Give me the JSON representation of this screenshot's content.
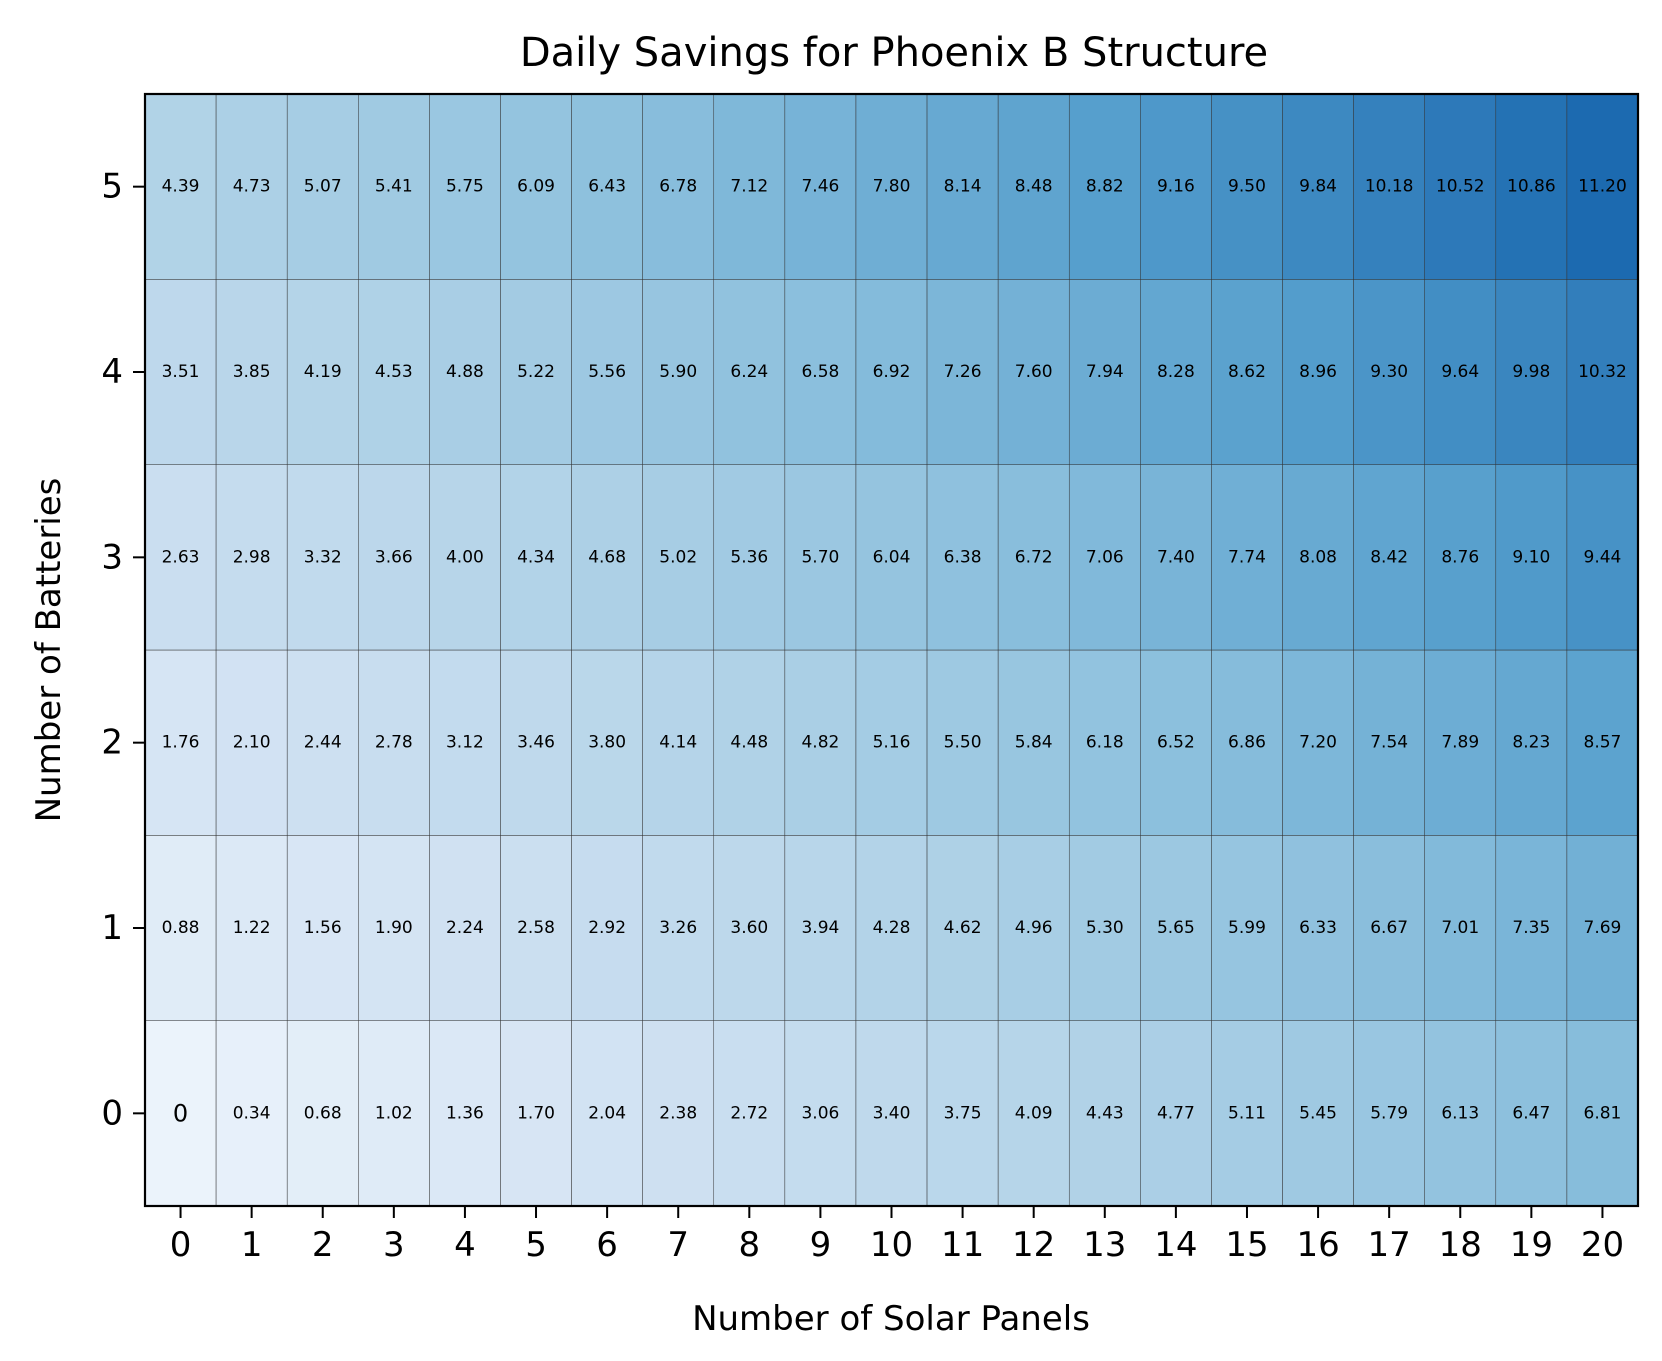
{
  "chart_data": {
    "type": "heatmap",
    "title": "Daily Savings for Phoenix B Structure",
    "xlabel": "Number of Solar Panels",
    "ylabel": "Number of Batteries",
    "x": [
      0,
      1,
      2,
      3,
      4,
      5,
      6,
      7,
      8,
      9,
      10,
      11,
      12,
      13,
      14,
      15,
      16,
      17,
      18,
      19,
      20
    ],
    "y": [
      0,
      1,
      2,
      3,
      4,
      5
    ],
    "values": [
      [
        "0",
        "0.34",
        "0.68",
        "1.02",
        "1.36",
        "1.70",
        "2.04",
        "2.38",
        "2.72",
        "3.06",
        "3.40",
        "3.75",
        "4.09",
        "4.43",
        "4.77",
        "5.11",
        "5.45",
        "5.79",
        "6.13",
        "6.47",
        "6.81"
      ],
      [
        "0.88",
        "1.22",
        "1.56",
        "1.90",
        "2.24",
        "2.58",
        "2.92",
        "3.26",
        "3.60",
        "3.94",
        "4.28",
        "4.62",
        "4.96",
        "5.30",
        "5.65",
        "5.99",
        "6.33",
        "6.67",
        "7.01",
        "7.35",
        "7.69"
      ],
      [
        "1.76",
        "2.10",
        "2.44",
        "2.78",
        "3.12",
        "3.46",
        "3.80",
        "4.14",
        "4.48",
        "4.82",
        "5.16",
        "5.50",
        "5.84",
        "6.18",
        "6.52",
        "6.86",
        "7.20",
        "7.54",
        "7.89",
        "8.23",
        "8.57"
      ],
      [
        "2.63",
        "2.98",
        "3.32",
        "3.66",
        "4.00",
        "4.34",
        "4.68",
        "5.02",
        "5.36",
        "5.70",
        "6.04",
        "6.38",
        "6.72",
        "7.06",
        "7.40",
        "7.74",
        "8.08",
        "8.42",
        "8.76",
        "9.10",
        "9.44"
      ],
      [
        "3.51",
        "3.85",
        "4.19",
        "4.53",
        "4.88",
        "5.22",
        "5.56",
        "5.90",
        "6.24",
        "6.58",
        "6.92",
        "7.26",
        "7.60",
        "7.94",
        "8.28",
        "8.62",
        "8.96",
        "9.30",
        "9.64",
        "9.98",
        "10.32"
      ],
      [
        "4.39",
        "4.73",
        "5.07",
        "5.41",
        "5.75",
        "6.09",
        "6.43",
        "6.78",
        "7.12",
        "7.46",
        "7.80",
        "8.14",
        "8.48",
        "8.82",
        "9.16",
        "9.50",
        "9.84",
        "10.18",
        "10.52",
        "10.86",
        "11.20"
      ]
    ],
    "colormap": "Blues",
    "grid": false,
    "legend": "none"
  }
}
